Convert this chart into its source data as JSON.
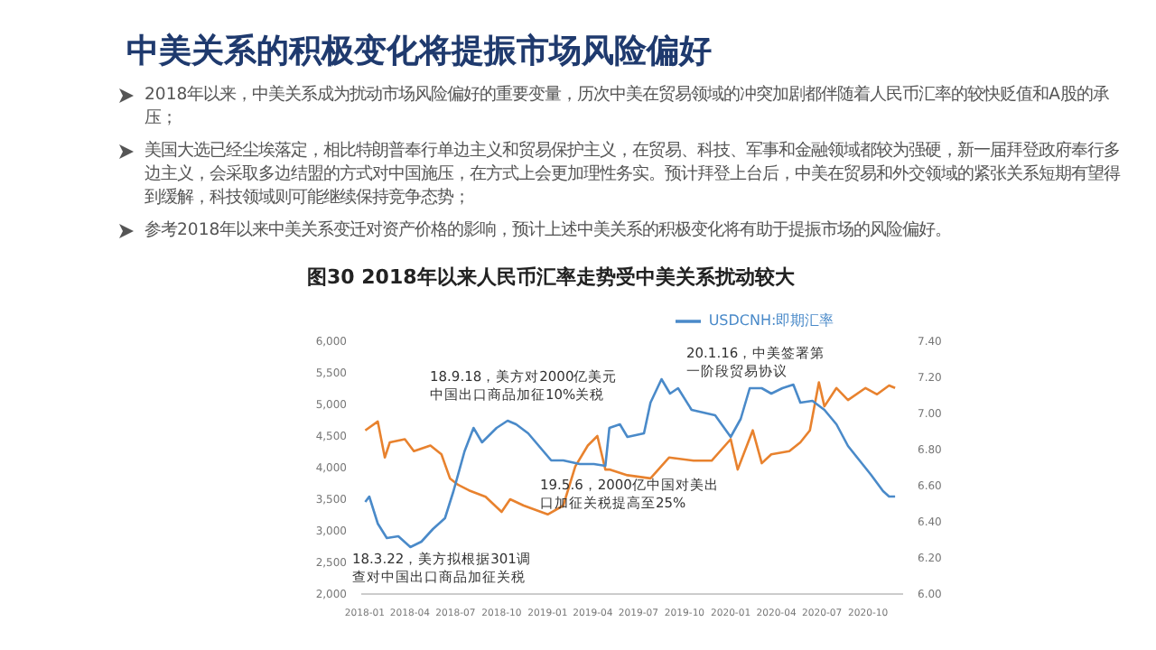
{
  "chart_data": {
    "type": "line",
    "title": "中美关系的积极变化将提振市场风险偏好",
    "subtitle": "图30 2018年以来人民币汇率走势受中美关系扰动较大",
    "annotations": [
      "2018年以来，中美关系成为扰动市场风险偏好的重要变量，历次中美在贸易领域的冲突加剧都伴随着人民币汇率的较快贬值和A股的承压；",
      "美国大选已经尘埃落定，相比特朗普奉行单边主义和贸易保护主义，在贸易、科技、军事和金融领域都较为强硬，新一届拜登政府奉行多边主义，会采取多边结盟的方式对中国施压，在方式上会更加理性务实。预计拜登上台后，中美在贸易和外交领域的紧张关系短期有望得到缓解，科技领域则可能继续保持竞争态势；",
      "参考2018年以来中美关系变迁对资产价格的影响，预计上述中美关系的积极变化将有助于提振市场的风险偏好。",
      "18.3.22，美方拟根据301调查对中国出口商品加征关税",
      "18.9.18，美方对2000亿美元中国出口商品加征10%关税",
      "19.5.6，2000亿中国对美出口加征关税提高至25%",
      "20.1.16，中美签署第一阶段贸易协议"
    ],
    "xlim": [
      "2017-12-25",
      "2020-12-10"
    ],
    "xticks": [
      "2018-01",
      "2018-04",
      "2018-07",
      "2018-10",
      "2019-01",
      "2019-04",
      "2019-07",
      "2019-10",
      "2020-01",
      "2020-04",
      "2020-07",
      "2020-10"
    ],
    "ylim": [
      2000,
      6000
    ],
    "yticks": [
      {
        "value": 2000,
        "label": "2,000"
      },
      {
        "value": 2500,
        "label": "2,500"
      },
      {
        "value": 3000,
        "label": "3,000"
      },
      {
        "value": 3500,
        "label": "3,500"
      },
      {
        "value": 4000,
        "label": "4,000"
      },
      {
        "value": 4500,
        "label": "4,500"
      },
      {
        "value": 5000,
        "label": "5,000"
      },
      {
        "value": 5500,
        "label": "5,500"
      },
      {
        "value": 6000,
        "label": "6,000"
      }
    ],
    "y2lim": [
      6.0,
      7.4
    ],
    "y2ticks": [
      {
        "value": 6.0,
        "label": "6.00"
      },
      {
        "value": 6.2,
        "label": "6.20"
      },
      {
        "value": 6.4,
        "label": "6.40"
      },
      {
        "value": 6.6,
        "label": "6.60"
      },
      {
        "value": 6.8,
        "label": "6.80"
      },
      {
        "value": 7.0,
        "label": "7.00"
      },
      {
        "value": 7.2,
        "label": "7.20"
      },
      {
        "value": 7.4,
        "label": "7.40"
      }
    ],
    "legend": "top",
    "marker": "none",
    "series": [
      {
        "color": "#e8822e",
        "x": [
          "2018-01-02",
          "2018-01-27",
          "2018-02-10",
          "2018-02-20",
          "2018-03-22",
          "2018-04-09",
          "2018-05-12",
          "2018-06-03",
          "2018-06-20",
          "2018-07-06",
          "2018-07-28",
          "2018-08-30",
          "2018-10-01",
          "2018-10-18",
          "2018-11-14",
          "2019-01-01",
          "2019-02-01",
          "2019-02-25",
          "2019-03-22",
          "2019-04-10",
          "2019-04-26",
          "2019-05-04",
          "2019-06-09",
          "2019-07-25",
          "2019-08-31",
          "2019-10-19",
          "2019-11-24",
          "2020-01-01",
          "2020-01-15",
          "2020-02-14",
          "2020-03-03",
          "2020-03-22",
          "2020-04-27",
          "2020-05-19",
          "2020-06-07",
          "2020-06-25",
          "2020-07-06",
          "2020-07-30",
          "2020-08-22",
          "2020-09-26",
          "2020-10-19",
          "2020-11-12",
          "2020-11-24"
        ],
        "values": [
          4590,
          4730,
          4160,
          4400,
          4450,
          4260,
          4350,
          4210,
          3830,
          3730,
          3640,
          3540,
          3300,
          3500,
          3400,
          3260,
          3400,
          4020,
          4350,
          4500,
          3970,
          3970,
          3880,
          3830,
          4160,
          4110,
          4110,
          4450,
          3970,
          4590,
          4070,
          4210,
          4260,
          4400,
          4590,
          5350,
          4970,
          5260,
          5070,
          5260,
          5160,
          5300,
          5260
        ]
      },
      {
        "name": "USDCNH:即期汇率",
        "color": "#4a8ac9",
        "axis": "y2",
        "x": [
          "2018-01-02",
          "2018-01-10",
          "2018-01-27",
          "2018-02-14",
          "2018-03-09",
          "2018-04-02",
          "2018-04-24",
          "2018-05-17",
          "2018-06-10",
          "2018-06-27",
          "2018-07-19",
          "2018-08-06",
          "2018-08-23",
          "2018-09-21",
          "2018-10-13",
          "2018-10-30",
          "2018-11-23",
          "2019-01-08",
          "2019-02-01",
          "2019-03-06",
          "2019-04-03",
          "2019-04-26",
          "2019-05-04",
          "2019-05-25",
          "2019-06-09",
          "2019-07-12",
          "2019-07-25",
          "2019-08-16",
          "2019-09-02",
          "2019-09-18",
          "2019-10-15",
          "2019-12-01",
          "2020-01-01",
          "2020-01-21",
          "2020-02-08",
          "2020-03-03",
          "2020-03-22",
          "2020-04-13",
          "2020-05-05",
          "2020-05-19",
          "2020-06-12",
          "2020-07-06",
          "2020-07-30",
          "2020-08-22",
          "2020-09-14",
          "2020-10-07",
          "2020-10-31",
          "2020-11-12",
          "2020-11-24"
        ],
        "values": [
          6.51,
          6.54,
          6.39,
          6.31,
          6.32,
          6.26,
          6.29,
          6.36,
          6.42,
          6.57,
          6.79,
          6.92,
          6.84,
          6.92,
          6.96,
          6.94,
          6.89,
          6.74,
          6.74,
          6.72,
          6.72,
          6.71,
          6.92,
          6.94,
          6.87,
          6.89,
          7.06,
          7.19,
          7.11,
          7.14,
          7.02,
          6.99,
          6.87,
          6.97,
          7.14,
          7.14,
          7.11,
          7.14,
          7.16,
          7.06,
          7.07,
          7.02,
          6.94,
          6.82,
          6.74,
          6.66,
          6.57,
          6.54,
          6.54
        ]
      }
    ]
  }
}
